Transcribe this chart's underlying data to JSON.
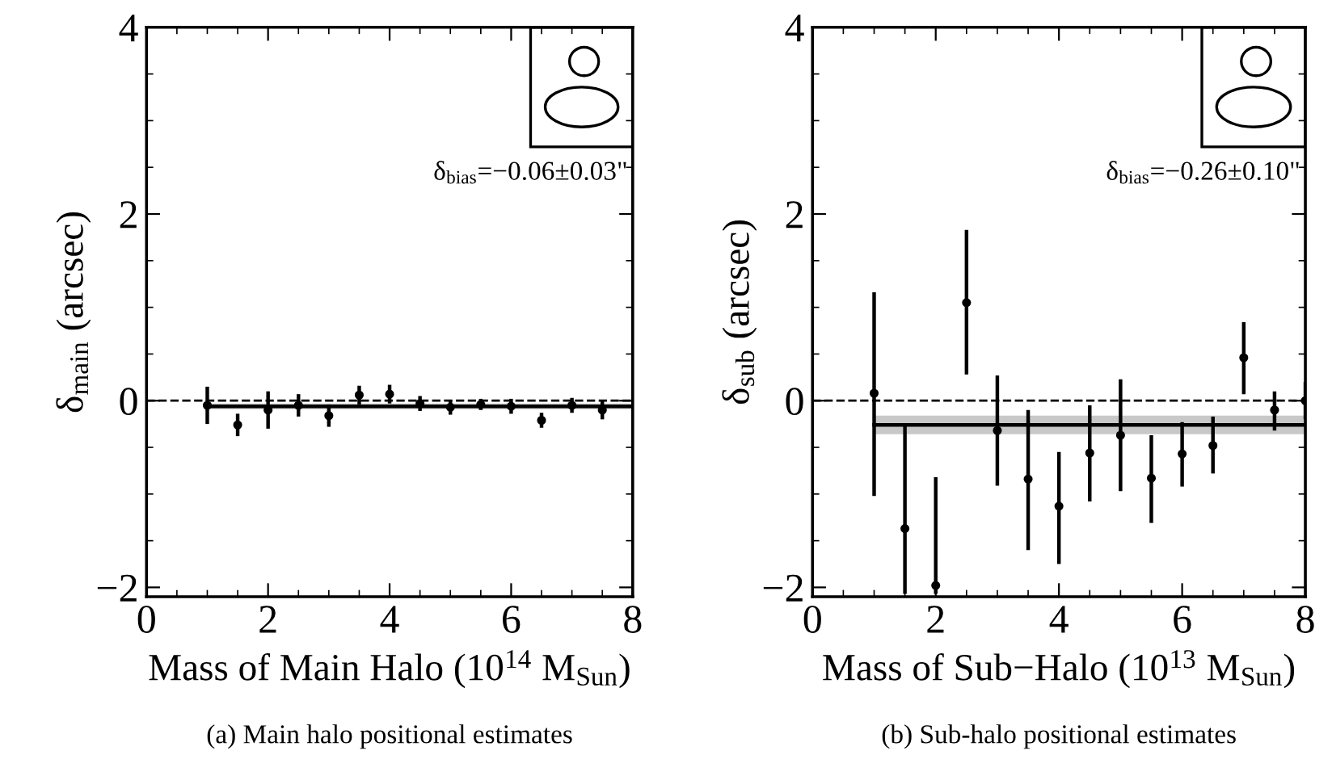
{
  "chart_data": [
    {
      "type": "scatter",
      "xlabel": "Mass of Main Halo (10$^{14}$ M$_{Sun}$)",
      "ylabel": "δ$_{main}$ (arcsec)",
      "xlim": [
        0,
        8
      ],
      "ylim": [
        -2.1,
        4
      ],
      "xticks": [
        0,
        2,
        4,
        6,
        8
      ],
      "yticks": [
        -2,
        0,
        2,
        4
      ],
      "annotations": [
        "δ$_{bias}$=−0.06±0.03\"",
        "(a) Main halo positional estimates"
      ],
      "ref_lines": [
        {
          "axis": "y",
          "value": 0,
          "line_style": "dashed",
          "color": "#000000"
        }
      ],
      "series": [
        {
          "marker": "circle",
          "color": "#000000",
          "x": [
            1,
            1.5,
            2,
            2.5,
            3,
            3.5,
            4,
            4.5,
            5,
            5.5,
            6,
            6.5,
            7,
            7.5
          ],
          "values": [
            -0.05,
            -0.26,
            -0.1,
            -0.05,
            -0.16,
            0.06,
            0.07,
            -0.03,
            -0.07,
            -0.04,
            -0.06,
            -0.21,
            -0.05,
            -0.1
          ],
          "errors": [
            0.2,
            0.12,
            0.2,
            0.12,
            0.12,
            0.1,
            0.1,
            0.08,
            0.08,
            0.06,
            0.08,
            0.08,
            0.08,
            0.1
          ]
        },
        {
          "type": "line",
          "color": "#000000",
          "x": [
            1,
            8
          ],
          "values": [
            -0.06,
            -0.06
          ],
          "lower": [
            -0.09,
            -0.09
          ],
          "upper": [
            -0.03,
            -0.03
          ]
        }
      ]
    },
    {
      "type": "scatter",
      "xlabel": "Mass of Sub−Halo (10$^{13}$ M$_{Sun}$)",
      "ylabel": "δ$_{sub}$ (arcsec)",
      "xlim": [
        0,
        8
      ],
      "ylim": [
        -2.1,
        4
      ],
      "xticks": [
        0,
        2,
        4,
        6,
        8
      ],
      "yticks": [
        -2,
        0,
        2,
        4
      ],
      "annotations": [
        "δ$_{bias}$=−0.26±0.10\"",
        "(b) Sub-halo positional estimates"
      ],
      "ref_lines": [
        {
          "axis": "y",
          "value": 0,
          "line_style": "dashed",
          "color": "#000000"
        }
      ],
      "series": [
        {
          "marker": "circle",
          "color": "#000000",
          "x": [
            1,
            1.5,
            2,
            2.5,
            3,
            3.5,
            4,
            4.5,
            5,
            5.5,
            6,
            6.5,
            7,
            7.5,
            8
          ],
          "values": [
            0.08,
            -1.37,
            -1.98,
            1.05,
            -0.32,
            -0.84,
            -1.13,
            -0.56,
            -0.37,
            -0.83,
            -0.57,
            -0.48,
            0.46,
            -0.1,
            0.0
          ],
          "errors": [
            [
              -1.02,
              1.16
            ],
            [
              -2.07,
              -0.27
            ],
            [
              -2.07,
              -0.82
            ],
            [
              0.28,
              1.83
            ],
            [
              -0.91,
              0.27
            ],
            [
              -1.6,
              -0.1
            ],
            [
              -1.75,
              -0.55
            ],
            [
              -1.08,
              -0.05
            ],
            [
              -0.97,
              0.23
            ],
            [
              -1.31,
              -0.37
            ],
            [
              -0.92,
              -0.23
            ],
            [
              -0.78,
              -0.17
            ],
            [
              0.07,
              0.84
            ],
            [
              -0.32,
              0.1
            ],
            [
              -0.2,
              0.2
            ]
          ]
        },
        {
          "type": "line",
          "color": "#000000",
          "x": [
            1,
            8
          ],
          "values": [
            -0.26,
            -0.26
          ],
          "lower": [
            -0.36,
            -0.36
          ],
          "upper": [
            -0.16,
            -0.16
          ]
        }
      ]
    }
  ]
}
